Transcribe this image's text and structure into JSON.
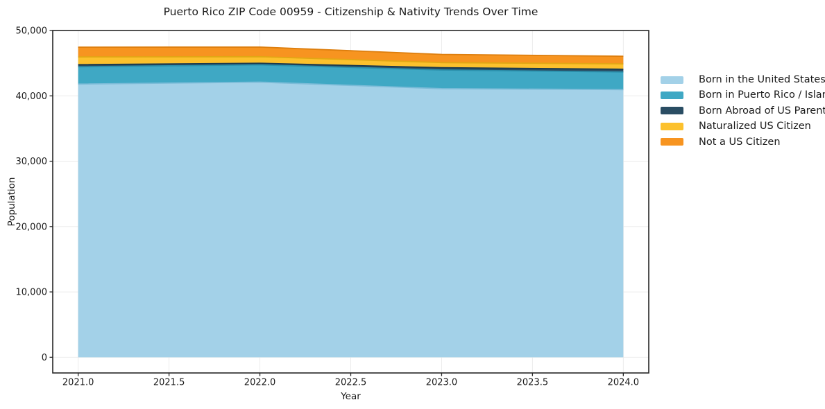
{
  "chart_data": {
    "type": "area",
    "stacked": true,
    "title": "Puerto Rico ZIP Code 00959 - Citizenship & Nativity Trends Over Time",
    "xlabel": "Year",
    "ylabel": "Population",
    "x": [
      2021,
      2022,
      2023,
      2024
    ],
    "series": [
      {
        "name": "Born in the United States",
        "color": "#a3d1e8",
        "edge_color": "#7cbcd8",
        "values": [
          41800,
          42100,
          41100,
          40950
        ]
      },
      {
        "name": "Born in Puerto Rico / Islands",
        "color": "#3fa8c4",
        "edge_color": "#2b90ac",
        "values": [
          2650,
          2650,
          2850,
          2700
        ]
      },
      {
        "name": "Born Abroad of US Parent(s)",
        "color": "#2a4d63",
        "edge_color": "#1c3a4d",
        "values": [
          320,
          240,
          360,
          420
        ]
      },
      {
        "name": "Naturalized US Citizen",
        "color": "#fcc12d",
        "edge_color": "#e2a714",
        "values": [
          1180,
          1000,
          780,
          820
        ]
      },
      {
        "name": "Not a US Citizen",
        "color": "#f79420",
        "edge_color": "#dd7e0d",
        "values": [
          1500,
          1480,
          1250,
          1170
        ]
      }
    ],
    "xlim": [
      2020.86,
      2024.14
    ],
    "ylim": [
      -2400,
      50000
    ],
    "xtick_values": [
      2021.0,
      2021.5,
      2022.0,
      2022.5,
      2023.0,
      2023.5,
      2024.0
    ],
    "xtick_labels": [
      "2021.0",
      "2021.5",
      "2022.0",
      "2022.5",
      "2023.0",
      "2023.5",
      "2024.0"
    ],
    "ytick_values": [
      0,
      10000,
      20000,
      30000,
      40000,
      50000
    ],
    "ytick_labels": [
      "0",
      "10,000",
      "20,000",
      "30,000",
      "40,000",
      "50,000"
    ],
    "grid": true,
    "grid_color": "#ebebeb",
    "axis_color": "#262626",
    "legend_position": "right"
  }
}
